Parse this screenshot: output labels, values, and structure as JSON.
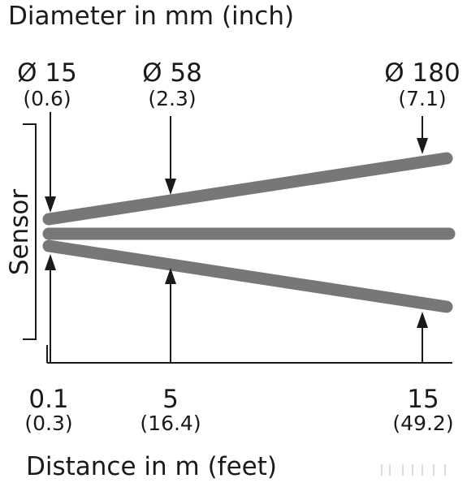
{
  "title": "Diameter in mm (inch)",
  "x_title": "Distance in m (feet)",
  "sensor_label": "Sensor",
  "diameters": [
    {
      "main": "Ø 15",
      "sub": "(0.6)"
    },
    {
      "main": "Ø 58",
      "sub": "(2.3)"
    },
    {
      "main": "Ø 180",
      "sub": "(7.1)"
    }
  ],
  "distances": [
    {
      "main": "0.1",
      "sub": "(0.3)"
    },
    {
      "main": "5",
      "sub": "(16.4)"
    },
    {
      "main": "15",
      "sub": "(49.2)"
    }
  ],
  "colors": {
    "beam": "#777777",
    "text": "#1a1a1a",
    "background": "#ffffff"
  }
}
